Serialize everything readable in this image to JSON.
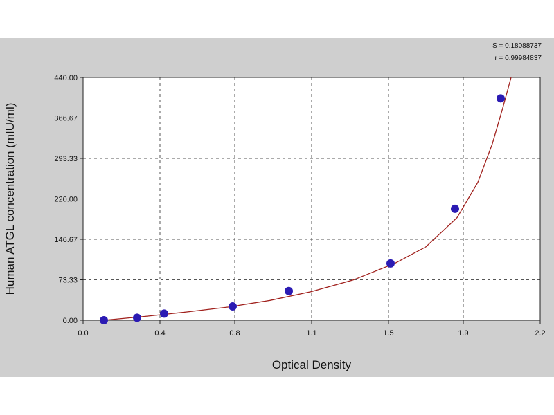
{
  "chart_data": {
    "type": "scatter",
    "xlabel": "Optical Density",
    "ylabel": "Human ATGL concentration (mIU/ml)",
    "xlim": [
      0.0,
      2.2
    ],
    "ylim": [
      0.0,
      440.0
    ],
    "x_ticks": [
      "0.0",
      "0.4",
      "0.8",
      "1.1",
      "1.5",
      "1.9",
      "2.2"
    ],
    "x_tick_values": [
      0.0,
      0.37,
      0.73,
      1.1,
      1.47,
      1.83,
      2.2
    ],
    "y_ticks": [
      "0.00",
      "73.33",
      "146.67",
      "220.00",
      "293.33",
      "366.67",
      "440.00"
    ],
    "y_tick_values": [
      0.0,
      73.33,
      146.67,
      220.0,
      293.33,
      366.67,
      440.0
    ],
    "grid": true,
    "points": [
      {
        "x": 0.1,
        "y": 0.0
      },
      {
        "x": 0.26,
        "y": 4.5
      },
      {
        "x": 0.39,
        "y": 12.0
      },
      {
        "x": 0.72,
        "y": 25.0
      },
      {
        "x": 0.99,
        "y": 53.0
      },
      {
        "x": 1.48,
        "y": 103.0
      },
      {
        "x": 1.79,
        "y": 202.0
      },
      {
        "x": 2.01,
        "y": 402.0
      }
    ],
    "fit_curve": {
      "x": [
        0.1,
        0.3,
        0.5,
        0.7,
        0.9,
        1.1,
        1.3,
        1.5,
        1.65,
        1.8,
        1.9,
        1.97,
        2.02,
        2.06
      ],
      "y": [
        0.0,
        7.0,
        15.0,
        24.0,
        36.0,
        52.0,
        73.0,
        103.0,
        133.0,
        186.0,
        250.0,
        320.0,
        385.0,
        440.0
      ]
    },
    "stats": [
      "S = 0.18088737",
      "r = 0.99984837"
    ],
    "colors": {
      "panel": "#cfcfcf",
      "plot_bg": "#ffffff",
      "point": "#2b1bb3",
      "curve": "#a0201c",
      "grid": "#555555"
    }
  }
}
